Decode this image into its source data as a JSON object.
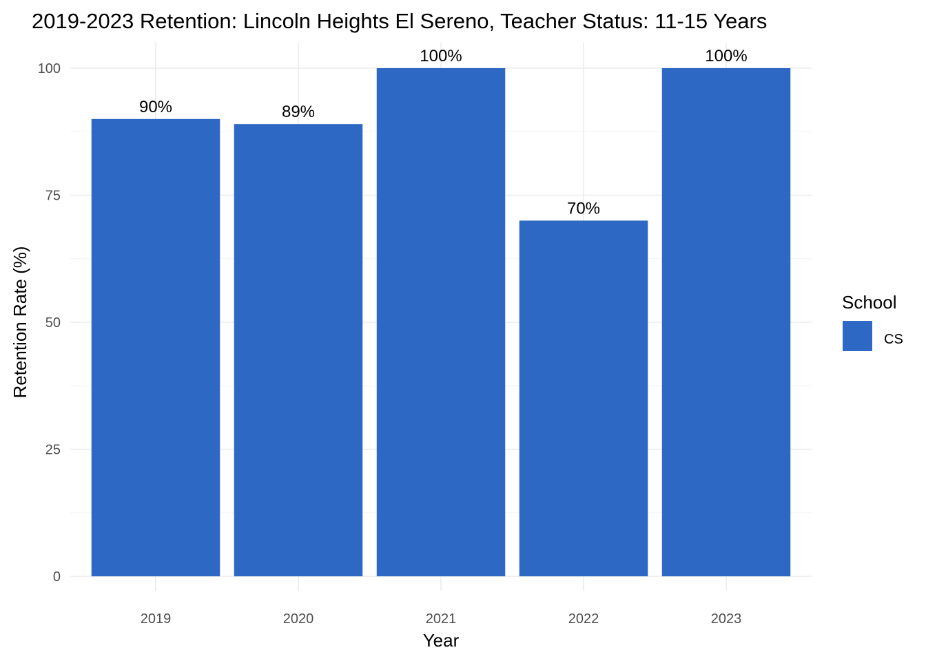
{
  "chart_data": {
    "type": "bar",
    "title": "2019-2023 Retention: Lincoln Heights El Sereno, Teacher Status: 11-15 Years",
    "xlabel": "Year",
    "ylabel": "Retention Rate (%)",
    "categories": [
      "2019",
      "2020",
      "2021",
      "2022",
      "2023"
    ],
    "series": [
      {
        "name": "CS",
        "values": [
          90,
          89,
          100,
          70,
          100
        ],
        "labels": [
          "90%",
          "89%",
          "100%",
          "70%",
          "100%"
        ]
      }
    ],
    "ylim": [
      0,
      100
    ],
    "yticks": [
      0,
      25,
      50,
      75,
      100
    ],
    "grid": true,
    "legend": {
      "title": "School",
      "position": "right"
    },
    "colors": {
      "bar": "#2d68c4"
    }
  }
}
